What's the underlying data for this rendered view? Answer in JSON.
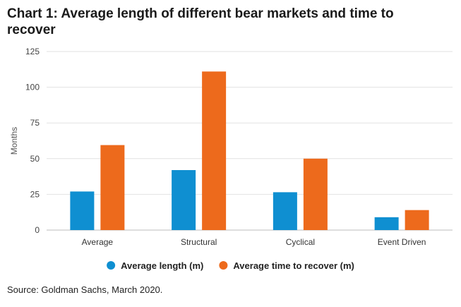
{
  "chart_data": {
    "type": "bar",
    "title": "Chart 1: Average length of different bear markets and time to recover",
    "xlabel": "",
    "ylabel": "Months",
    "categories": [
      "Average",
      "Structural",
      "Cyclical",
      "Event Driven"
    ],
    "series": [
      {
        "name": "Average length (m)",
        "color": "#0f8fd1",
        "values": [
          27,
          42,
          26.5,
          9
        ]
      },
      {
        "name": "Average time to recover (m)",
        "color": "#ed6a1c",
        "values": [
          59.5,
          111,
          50,
          14
        ]
      }
    ],
    "ylim": [
      0,
      125
    ],
    "yticks": [
      0,
      25,
      50,
      75,
      100,
      125
    ],
    "ytick_labels": [
      "0",
      "25",
      "50",
      "75",
      "100",
      "125"
    ],
    "grid": true,
    "legend_position": "bottom-center"
  },
  "source": "Source: Goldman Sachs, March 2020."
}
